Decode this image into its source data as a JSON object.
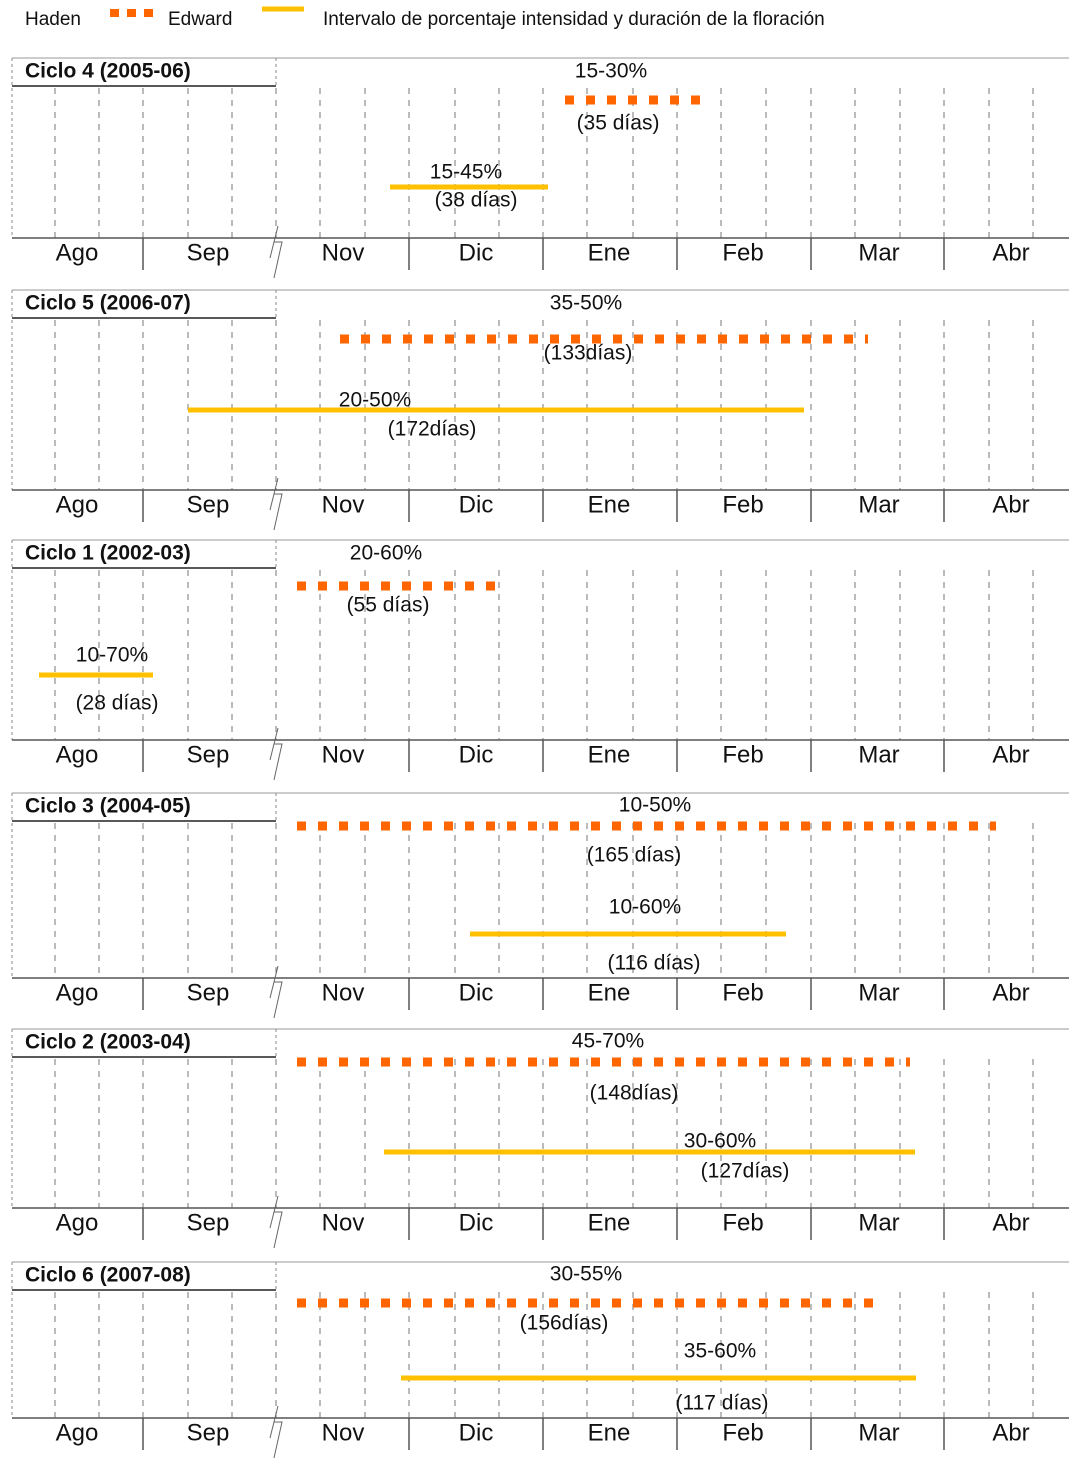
{
  "legend": {
    "haden": "Haden",
    "edward": "Edward",
    "description": "Intervalo de porcentaje intensidad y duración de la floración"
  },
  "panels": [
    {
      "title": "Ciclo 4  (2005-06)",
      "haden": {
        "range": "15-30%",
        "days": "(35 días)"
      },
      "edward": {
        "range": "15-45%",
        "days": "(38 días)"
      },
      "months": [
        "Ago",
        "Sep",
        "Nov",
        "Dic",
        "Ene",
        "Feb",
        "Mar",
        "Abr"
      ]
    },
    {
      "title": "Ciclo 5  (2006-07)",
      "haden": {
        "range": "35-50%",
        "days": "(133días)"
      },
      "edward": {
        "range": "20-50%",
        "days": "(172días)"
      },
      "months": [
        "Ago",
        "Sep",
        "Nov",
        "Dic",
        "Ene",
        "Feb",
        "Mar",
        "Abr"
      ]
    },
    {
      "title": "Ciclo 1 (2002-03)",
      "haden": {
        "range": "20-60%",
        "days": "(55 días)"
      },
      "edward": {
        "range": "10-70%",
        "days": "(28 días)"
      },
      "months": [
        "Ago",
        "Sep",
        "Nov",
        "Dic",
        "Ene",
        "Feb",
        "Mar",
        "Abr"
      ]
    },
    {
      "title": "Ciclo 3 (2004-05)",
      "haden": {
        "range": "10-50%",
        "days": "(165 días)"
      },
      "edward": {
        "range": "10-60%",
        "days": "(116 días)"
      },
      "months": [
        "Ago",
        "Sep",
        "Nov",
        "Dic",
        "Ene",
        "Feb",
        "Mar",
        "Abr"
      ]
    },
    {
      "title": "Ciclo 2 (2003-04)",
      "haden": {
        "range": "45-70%",
        "days": "(148días)"
      },
      "edward": {
        "range": "30-60%",
        "days": "(127días)"
      },
      "months": [
        "Ago",
        "Sep",
        "Nov",
        "Dic",
        "Ene",
        "Feb",
        "Mar",
        "Abr"
      ]
    },
    {
      "title": "Ciclo 6 (2007-08)",
      "haden": {
        "range": "30-55%",
        "days": "(156días)"
      },
      "edward": {
        "range": "35-60%",
        "days": "(117 días)"
      },
      "months": [
        "Ago",
        "Sep",
        "Nov",
        "Dic",
        "Ene",
        "Feb",
        "Mar",
        "Abr"
      ]
    }
  ]
}
